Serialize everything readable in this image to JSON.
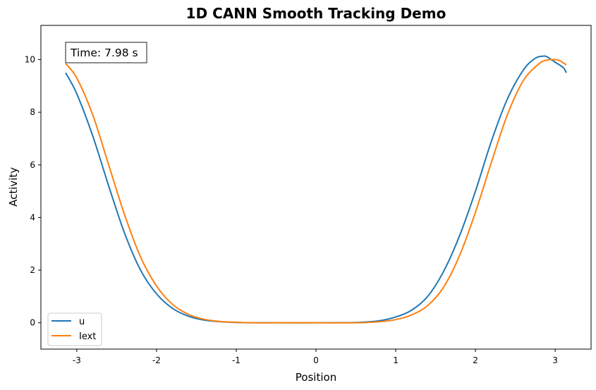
{
  "chart_data": {
    "type": "line",
    "title": "1D CANN Smooth Tracking Demo",
    "xlabel": "Position",
    "ylabel": "Activity",
    "xlim": [
      -3.45,
      3.45
    ],
    "ylim": [
      -1.0,
      11.3
    ],
    "xticks": [
      -3,
      -2,
      -1,
      0,
      1,
      2,
      3
    ],
    "xtick_labels": [
      "-3",
      "-2",
      "-1",
      "0",
      "1",
      "2",
      "3"
    ],
    "yticks": [
      0,
      2,
      4,
      6,
      8,
      10
    ],
    "ytick_labels": [
      "0",
      "2",
      "4",
      "6",
      "8",
      "10"
    ],
    "grid": false,
    "legend_position": "lower-left",
    "annotation": "Time: 7.98 s",
    "series": [
      {
        "name": "u",
        "color": "#1f77b4",
        "x": [
          -3.14,
          -3.0,
          -2.8,
          -2.6,
          -2.4,
          -2.2,
          -2.0,
          -1.8,
          -1.6,
          -1.4,
          -1.2,
          -1.0,
          -0.8,
          -0.5,
          0.0,
          0.5,
          0.8,
          1.0,
          1.2,
          1.4,
          1.6,
          1.8,
          2.0,
          2.2,
          2.4,
          2.6,
          2.75,
          2.85,
          2.9,
          3.0,
          3.1,
          3.14
        ],
        "values": [
          9.5,
          8.7,
          7.1,
          5.2,
          3.4,
          2.0,
          1.1,
          0.55,
          0.25,
          0.1,
          0.04,
          0.01,
          0.0,
          0.0,
          0.0,
          0.01,
          0.08,
          0.22,
          0.48,
          1.0,
          1.95,
          3.3,
          5.0,
          6.9,
          8.5,
          9.6,
          10.05,
          10.13,
          10.1,
          9.9,
          9.7,
          9.5
        ]
      },
      {
        "name": "Iext",
        "color": "#ff7f0e",
        "x": [
          -3.14,
          -3.0,
          -2.8,
          -2.6,
          -2.4,
          -2.2,
          -2.0,
          -1.8,
          -1.6,
          -1.4,
          -1.2,
          -1.0,
          -0.8,
          -0.5,
          0.0,
          0.5,
          0.8,
          1.0,
          1.2,
          1.4,
          1.6,
          1.8,
          2.0,
          2.2,
          2.4,
          2.6,
          2.8,
          2.9,
          3.0,
          3.05,
          3.1,
          3.14
        ],
        "values": [
          9.85,
          9.3,
          7.9,
          6.0,
          4.1,
          2.5,
          1.4,
          0.7,
          0.32,
          0.13,
          0.05,
          0.02,
          0.0,
          0.0,
          0.0,
          0.0,
          0.04,
          0.12,
          0.3,
          0.65,
          1.35,
          2.55,
          4.2,
          6.1,
          7.9,
          9.2,
          9.85,
          9.98,
          10.0,
          9.97,
          9.88,
          9.8
        ]
      }
    ]
  }
}
